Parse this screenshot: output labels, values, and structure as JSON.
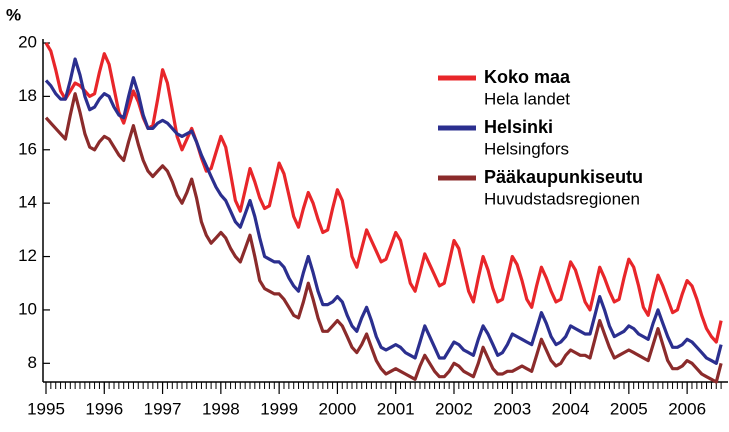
{
  "chart_data": {
    "type": "line",
    "ylabel": "%",
    "legend": "upper right",
    "xlim": [
      1995,
      2006.667
    ],
    "ylim": [
      7.3,
      20
    ],
    "xticks": [
      1995,
      1996,
      1997,
      1998,
      1999,
      2000,
      2001,
      2002,
      2003,
      2004,
      2005,
      2006
    ],
    "yticks": [
      8,
      10,
      12,
      14,
      16,
      18,
      20
    ],
    "grid": false,
    "x": [
      1995,
      1995.083,
      1995.167,
      1995.25,
      1995.333,
      1995.417,
      1995.5,
      1995.583,
      1995.667,
      1995.75,
      1995.833,
      1995.917,
      1996,
      1996.083,
      1996.167,
      1996.25,
      1996.333,
      1996.417,
      1996.5,
      1996.583,
      1996.667,
      1996.75,
      1996.833,
      1996.917,
      1997,
      1997.083,
      1997.167,
      1997.25,
      1997.333,
      1997.417,
      1997.5,
      1997.583,
      1997.667,
      1997.75,
      1997.833,
      1997.917,
      1998,
      1998.083,
      1998.167,
      1998.25,
      1998.333,
      1998.417,
      1998.5,
      1998.583,
      1998.667,
      1998.75,
      1998.833,
      1998.917,
      1999,
      1999.083,
      1999.167,
      1999.25,
      1999.333,
      1999.417,
      1999.5,
      1999.583,
      1999.667,
      1999.75,
      1999.833,
      1999.917,
      2000,
      2000.083,
      2000.167,
      2000.25,
      2000.333,
      2000.417,
      2000.5,
      2000.583,
      2000.667,
      2000.75,
      2000.833,
      2000.917,
      2001,
      2001.083,
      2001.167,
      2001.25,
      2001.333,
      2001.417,
      2001.5,
      2001.583,
      2001.667,
      2001.75,
      2001.833,
      2001.917,
      2002,
      2002.083,
      2002.167,
      2002.25,
      2002.333,
      2002.417,
      2002.5,
      2002.583,
      2002.667,
      2002.75,
      2002.833,
      2002.917,
      2003,
      2003.083,
      2003.167,
      2003.25,
      2003.333,
      2003.417,
      2003.5,
      2003.583,
      2003.667,
      2003.75,
      2003.833,
      2003.917,
      2004,
      2004.083,
      2004.167,
      2004.25,
      2004.333,
      2004.417,
      2004.5,
      2004.583,
      2004.667,
      2004.75,
      2004.833,
      2004.917,
      2005,
      2005.083,
      2005.167,
      2005.25,
      2005.333,
      2005.417,
      2005.5,
      2005.583,
      2005.667,
      2005.75,
      2005.833,
      2005.917,
      2006,
      2006.083,
      2006.167,
      2006.25,
      2006.333,
      2006.417,
      2006.5,
      2006.583
    ],
    "series": [
      {
        "name": "Koko maa",
        "subname": "Hela landet",
        "color": "#e8262a",
        "values": [
          20.0,
          19.7,
          19.0,
          18.2,
          17.9,
          18.2,
          18.5,
          18.4,
          18.2,
          18.0,
          18.1,
          18.9,
          19.6,
          19.2,
          18.3,
          17.4,
          17.0,
          17.6,
          18.2,
          17.8,
          17.2,
          16.8,
          16.9,
          17.9,
          19.0,
          18.5,
          17.5,
          16.5,
          16.0,
          16.4,
          16.8,
          16.3,
          15.7,
          15.2,
          15.3,
          15.9,
          16.5,
          16.1,
          15.1,
          14.1,
          13.7,
          14.5,
          15.3,
          14.8,
          14.2,
          13.8,
          13.9,
          14.7,
          15.5,
          15.1,
          14.3,
          13.5,
          13.1,
          13.8,
          14.4,
          14.0,
          13.4,
          12.9,
          13.0,
          13.8,
          14.5,
          14.1,
          13.1,
          12.0,
          11.6,
          12.3,
          13.0,
          12.6,
          12.2,
          11.8,
          11.9,
          12.4,
          12.9,
          12.6,
          11.8,
          11.0,
          10.7,
          11.4,
          12.1,
          11.7,
          11.3,
          10.9,
          11.0,
          11.8,
          12.6,
          12.3,
          11.5,
          10.7,
          10.3,
          11.2,
          12.0,
          11.5,
          10.8,
          10.3,
          10.4,
          11.2,
          12.0,
          11.7,
          11.1,
          10.4,
          10.1,
          10.9,
          11.6,
          11.2,
          10.7,
          10.3,
          10.4,
          11.1,
          11.8,
          11.5,
          10.9,
          10.3,
          10.0,
          10.8,
          11.6,
          11.2,
          10.7,
          10.3,
          10.4,
          11.2,
          11.9,
          11.6,
          10.9,
          10.1,
          9.8,
          10.6,
          11.3,
          10.9,
          10.4,
          9.9,
          10.0,
          10.6,
          11.1,
          10.9,
          10.4,
          9.8,
          9.3,
          9.0,
          8.8,
          9.6
        ]
      },
      {
        "name": "Helsinki",
        "subname": "Helsingfors",
        "color": "#2b2f8f",
        "values": [
          18.6,
          18.4,
          18.1,
          17.9,
          17.9,
          18.6,
          19.4,
          18.8,
          18.0,
          17.5,
          17.6,
          17.9,
          18.1,
          18.0,
          17.6,
          17.3,
          17.2,
          18.0,
          18.7,
          18.1,
          17.3,
          16.8,
          16.8,
          17.0,
          17.1,
          17.0,
          16.8,
          16.6,
          16.5,
          16.6,
          16.7,
          16.3,
          15.8,
          15.4,
          15.0,
          14.6,
          14.3,
          14.1,
          13.7,
          13.3,
          13.1,
          13.6,
          14.1,
          13.5,
          12.7,
          12.0,
          11.9,
          11.8,
          11.8,
          11.6,
          11.2,
          10.9,
          10.7,
          11.4,
          12.0,
          11.4,
          10.7,
          10.2,
          10.2,
          10.3,
          10.5,
          10.3,
          9.8,
          9.4,
          9.2,
          9.7,
          10.1,
          9.6,
          9.0,
          8.6,
          8.5,
          8.6,
          8.7,
          8.6,
          8.4,
          8.3,
          8.2,
          8.8,
          9.4,
          9.0,
          8.6,
          8.2,
          8.2,
          8.5,
          8.8,
          8.7,
          8.5,
          8.4,
          8.3,
          8.9,
          9.4,
          9.1,
          8.7,
          8.3,
          8.4,
          8.7,
          9.1,
          9.0,
          8.9,
          8.8,
          8.7,
          9.3,
          9.9,
          9.5,
          9.0,
          8.7,
          8.8,
          9.0,
          9.4,
          9.3,
          9.2,
          9.1,
          9.1,
          9.8,
          10.5,
          10.0,
          9.4,
          9.0,
          9.1,
          9.2,
          9.4,
          9.3,
          9.1,
          9.0,
          8.9,
          9.5,
          10.0,
          9.5,
          9.0,
          8.6,
          8.6,
          8.7,
          8.9,
          8.8,
          8.6,
          8.4,
          8.2,
          8.1,
          8.0,
          8.7
        ]
      },
      {
        "name": "Pääkaupunkiseutu",
        "subname": "Huvudstadsregionen",
        "color": "#8b2b2b",
        "values": [
          17.2,
          17.0,
          16.8,
          16.6,
          16.4,
          17.3,
          18.1,
          17.4,
          16.6,
          16.1,
          16.0,
          16.3,
          16.5,
          16.4,
          16.1,
          15.8,
          15.6,
          16.3,
          16.9,
          16.2,
          15.6,
          15.2,
          15.0,
          15.2,
          15.4,
          15.2,
          14.8,
          14.3,
          14.0,
          14.4,
          14.9,
          14.2,
          13.3,
          12.8,
          12.5,
          12.7,
          12.9,
          12.7,
          12.3,
          12.0,
          11.8,
          12.3,
          12.8,
          12.0,
          11.1,
          10.8,
          10.7,
          10.6,
          10.6,
          10.4,
          10.1,
          9.8,
          9.7,
          10.3,
          11.0,
          10.4,
          9.7,
          9.2,
          9.2,
          9.4,
          9.6,
          9.4,
          9.0,
          8.6,
          8.4,
          8.7,
          9.1,
          8.6,
          8.1,
          7.8,
          7.6,
          7.7,
          7.8,
          7.7,
          7.6,
          7.5,
          7.4,
          7.9,
          8.3,
          8.0,
          7.7,
          7.5,
          7.5,
          7.7,
          8.0,
          7.9,
          7.7,
          7.6,
          7.5,
          8.0,
          8.6,
          8.2,
          7.8,
          7.6,
          7.6,
          7.7,
          7.7,
          7.8,
          7.9,
          7.8,
          7.7,
          8.3,
          8.9,
          8.5,
          8.1,
          7.9,
          8.0,
          8.3,
          8.5,
          8.4,
          8.3,
          8.3,
          8.2,
          8.9,
          9.6,
          9.1,
          8.6,
          8.2,
          8.3,
          8.4,
          8.5,
          8.4,
          8.3,
          8.2,
          8.1,
          8.7,
          9.3,
          8.7,
          8.1,
          7.8,
          7.8,
          7.9,
          8.1,
          8.0,
          7.8,
          7.6,
          7.5,
          7.4,
          7.3,
          8.0
        ]
      }
    ]
  }
}
